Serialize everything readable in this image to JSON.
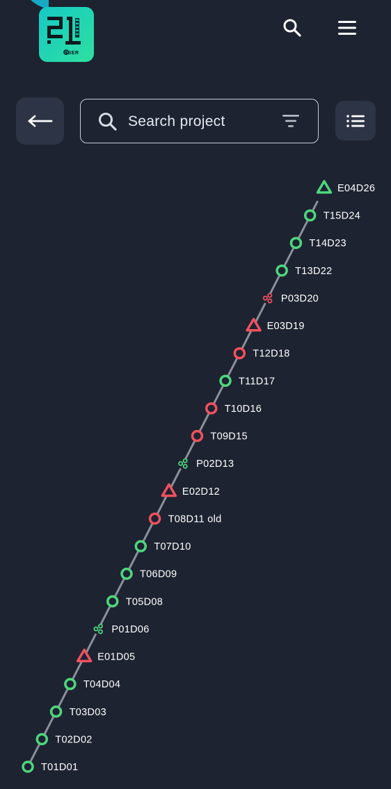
{
  "header": {
    "logo_icon": "school-21-logo",
    "logo_sub": "SBER",
    "search_icon": "search-icon",
    "menu_icon": "hamburger-menu-icon"
  },
  "toolbar": {
    "back_icon": "arrow-left-icon",
    "search": {
      "placeholder": "Search project",
      "icon": "search-icon",
      "filter_icon": "filter-icon"
    },
    "list_view_icon": "list-view-icon"
  },
  "colors": {
    "background": "#1d2330",
    "card": "#2c3445",
    "green": "#4fd67f",
    "red": "#f05060",
    "line": "#8b909a"
  },
  "timeline": {
    "nodes": [
      {
        "label": "E04D26",
        "shape": "triangle",
        "status": "green"
      },
      {
        "label": "T15D24",
        "shape": "circle",
        "status": "green"
      },
      {
        "label": "T14D23",
        "shape": "circle",
        "status": "green"
      },
      {
        "label": "T13D22",
        "shape": "circle",
        "status": "green"
      },
      {
        "label": "P03D20",
        "shape": "group",
        "status": "red"
      },
      {
        "label": "E03D19",
        "shape": "triangle",
        "status": "red"
      },
      {
        "label": "T12D18",
        "shape": "circle",
        "status": "red"
      },
      {
        "label": "T11D17",
        "shape": "circle",
        "status": "green"
      },
      {
        "label": "T10D16",
        "shape": "circle",
        "status": "red"
      },
      {
        "label": "T09D15",
        "shape": "circle",
        "status": "red"
      },
      {
        "label": "P02D13",
        "shape": "group",
        "status": "green"
      },
      {
        "label": "E02D12",
        "shape": "triangle",
        "status": "red"
      },
      {
        "label": "T08D11 old",
        "shape": "circle",
        "status": "red"
      },
      {
        "label": "T07D10",
        "shape": "circle",
        "status": "green"
      },
      {
        "label": "T06D09",
        "shape": "circle",
        "status": "green"
      },
      {
        "label": "T05D08",
        "shape": "circle",
        "status": "green"
      },
      {
        "label": "P01D06",
        "shape": "group",
        "status": "green"
      },
      {
        "label": "E01D05",
        "shape": "triangle",
        "status": "red"
      },
      {
        "label": "T04D04",
        "shape": "circle",
        "status": "green"
      },
      {
        "label": "T03D03",
        "shape": "circle",
        "status": "green"
      },
      {
        "label": "T02D02",
        "shape": "circle",
        "status": "green"
      },
      {
        "label": "T01D01",
        "shape": "circle",
        "status": "green"
      }
    ]
  }
}
